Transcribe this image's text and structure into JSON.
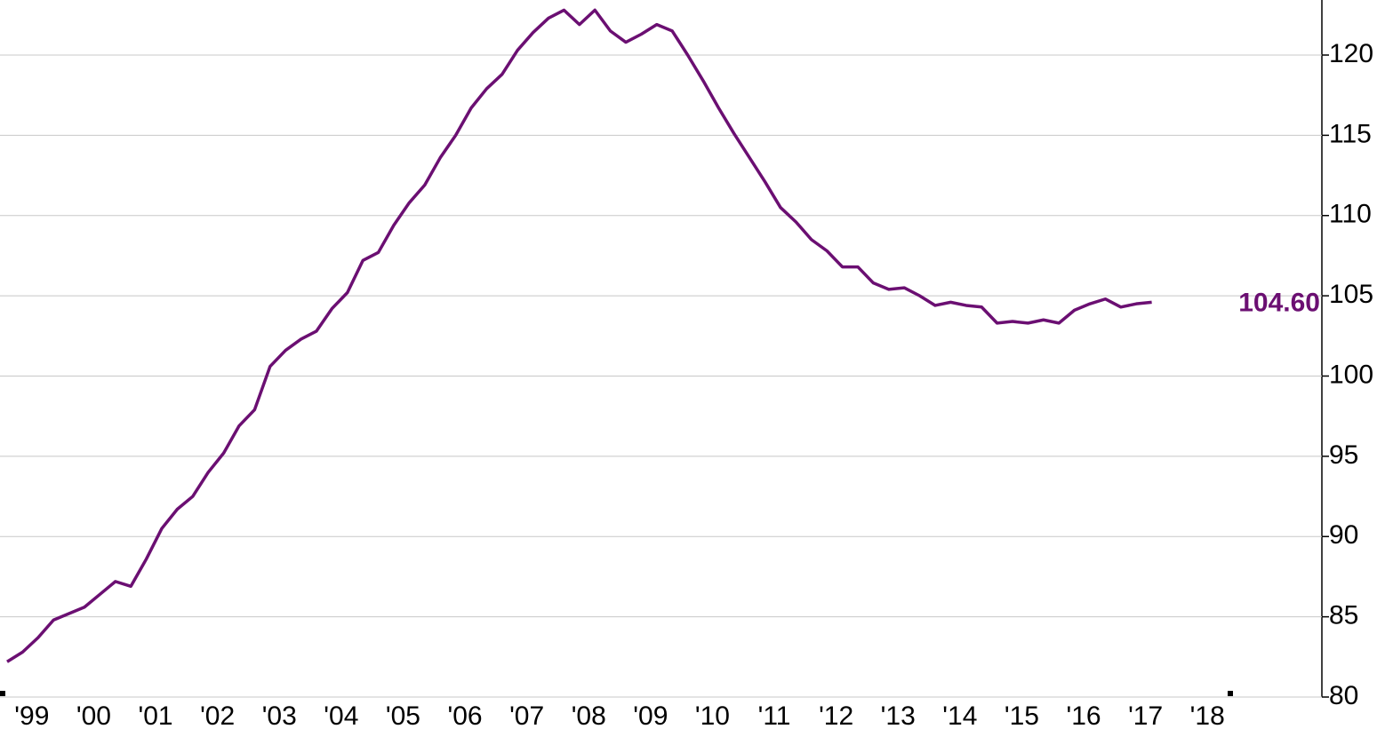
{
  "chart_data": {
    "type": "line",
    "x": [
      1999,
      1999.25,
      1999.5,
      1999.75,
      2000,
      2000.25,
      2000.5,
      2000.75,
      2001,
      2001.25,
      2001.5,
      2001.75,
      2002,
      2002.25,
      2002.5,
      2002.75,
      2003,
      2003.25,
      2003.5,
      2003.75,
      2004,
      2004.25,
      2004.5,
      2004.75,
      2005,
      2005.25,
      2005.5,
      2005.75,
      2006,
      2006.25,
      2006.5,
      2006.75,
      2007,
      2007.25,
      2007.5,
      2007.75,
      2008,
      2008.25,
      2008.5,
      2008.75,
      2009,
      2009.25,
      2009.5,
      2009.75,
      2010,
      2010.25,
      2010.5,
      2010.75,
      2011,
      2011.25,
      2011.5,
      2011.75,
      2012,
      2012.25,
      2012.5,
      2012.75,
      2013,
      2013.25,
      2013.5,
      2013.75,
      2014,
      2014.25,
      2014.5,
      2014.75,
      2015,
      2015.25,
      2015.5,
      2015.75,
      2016,
      2016.25,
      2016.5,
      2016.75,
      2017,
      2017.25,
      2017.5
    ],
    "series": [
      {
        "color": "#6b0f72",
        "values": [
          82.2,
          82.8,
          83.7,
          84.8,
          85.2,
          85.6,
          86.4,
          87.2,
          86.9,
          88.6,
          90.5,
          91.7,
          92.5,
          94.0,
          95.2,
          96.9,
          97.9,
          100.6,
          101.6,
          102.3,
          102.8,
          104.2,
          105.2,
          107.2,
          107.7,
          109.4,
          110.8,
          111.9,
          113.6,
          115.0,
          116.7,
          117.9,
          118.8,
          120.3,
          121.4,
          122.3,
          122.8,
          121.9,
          122.8,
          121.5,
          120.8,
          121.3,
          121.9,
          121.5,
          120.0,
          118.4,
          116.7,
          115.1,
          113.6,
          112.1,
          110.5,
          109.6,
          108.5,
          107.8,
          106.8,
          106.8,
          105.8,
          105.4,
          105.5,
          105.0,
          104.4,
          104.6,
          104.4,
          104.3,
          103.3,
          103.4,
          103.3,
          103.5,
          103.3,
          104.1,
          104.5,
          104.8,
          104.3,
          104.5,
          104.6
        ],
        "value_labels": [
          null,
          null,
          null,
          null,
          null,
          null,
          null,
          null,
          null,
          null,
          null,
          null,
          null,
          null,
          null,
          null,
          null,
          null,
          null,
          null,
          null,
          null,
          null,
          null,
          null,
          null,
          null,
          null,
          null,
          null,
          null,
          null,
          null,
          null,
          null,
          null,
          null,
          null,
          null,
          null,
          null,
          null,
          null,
          null,
          null,
          null,
          null,
          null,
          null,
          null,
          null,
          null,
          null,
          null,
          null,
          null,
          null,
          null,
          null,
          null,
          null,
          null,
          null,
          null,
          null,
          null,
          null,
          null,
          null,
          null,
          null,
          null,
          null,
          null,
          "104.60"
        ]
      }
    ],
    "xlim": [
      1998.885,
      2020.25
    ],
    "xticks": [
      {
        "value": 1999.4,
        "label": "'99"
      },
      {
        "value": 2000.4,
        "label": "'00"
      },
      {
        "value": 2001.4,
        "label": "'01"
      },
      {
        "value": 2002.4,
        "label": "'02"
      },
      {
        "value": 2003.4,
        "label": "'03"
      },
      {
        "value": 2004.4,
        "label": "'04"
      },
      {
        "value": 2005.4,
        "label": "'05"
      },
      {
        "value": 2006.4,
        "label": "'06"
      },
      {
        "value": 2007.4,
        "label": "'07"
      },
      {
        "value": 2008.4,
        "label": "'08"
      },
      {
        "value": 2009.4,
        "label": "'09"
      },
      {
        "value": 2010.4,
        "label": "'10"
      },
      {
        "value": 2011.4,
        "label": "'11"
      },
      {
        "value": 2012.4,
        "label": "'12"
      },
      {
        "value": 2013.4,
        "label": "'13"
      },
      {
        "value": 2014.4,
        "label": "'14"
      },
      {
        "value": 2015.4,
        "label": "'15"
      },
      {
        "value": 2016.4,
        "label": "'16"
      },
      {
        "value": 2017.4,
        "label": "'17"
      },
      {
        "value": 2018.4,
        "label": "'18"
      }
    ],
    "ylim": [
      80,
      123.43
    ],
    "yticks": [
      80,
      85,
      90,
      95,
      100,
      105,
      110,
      115,
      120
    ],
    "grid": true
  }
}
